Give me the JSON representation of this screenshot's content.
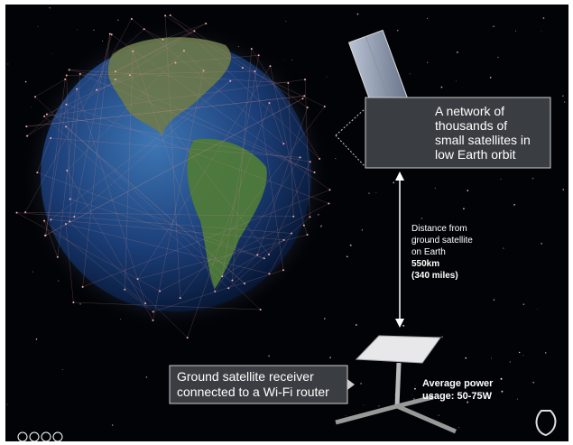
{
  "satellite_label": {
    "lines": [
      "A network of",
      "thousands of",
      "small satellites in",
      "low Earth orbit"
    ]
  },
  "distance_label": {
    "lines": [
      "Distance from",
      "ground satellite",
      "on Earth"
    ],
    "distance_km": "550km",
    "distance_miles": "(340 miles)"
  },
  "receiver_label": {
    "lines": [
      "Ground satellite receiver",
      "connected to a Wi-Fi router"
    ]
  },
  "power_label": {
    "lines": [
      "Average power",
      "usage: 50-75W"
    ]
  }
}
